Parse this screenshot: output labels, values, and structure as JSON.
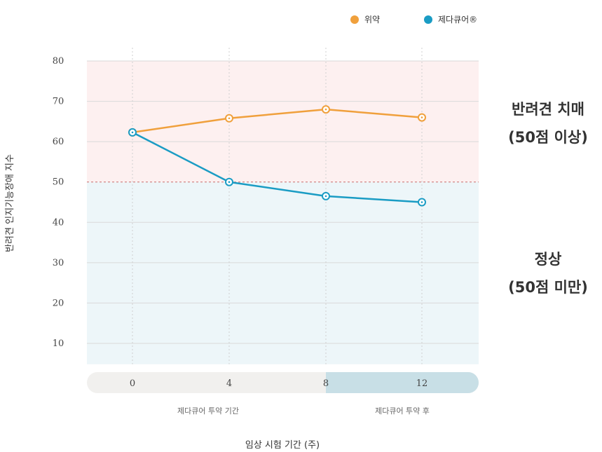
{
  "chart_data": {
    "type": "line",
    "x": [
      0,
      4,
      8,
      12
    ],
    "xlabel": "임상 시험 기간 (주)",
    "ylabel": "반려견 인지기능장애 지수",
    "ylim": [
      5,
      80
    ],
    "yticks": [
      10,
      20,
      30,
      40,
      50,
      60,
      70,
      80
    ],
    "threshold": 50,
    "series": [
      {
        "name": "위약",
        "color": "#f0a03c",
        "values": [
          62.3,
          65.8,
          68.0,
          66.0
        ]
      },
      {
        "name": "제다큐어®",
        "color": "#1a9cc4",
        "values": [
          62.3,
          50.0,
          46.5,
          45.0
        ]
      }
    ],
    "zones": {
      "upper": {
        "line1": "반려견 치매",
        "line2": "(50점 이상)",
        "color": "#fdf0f0"
      },
      "lower": {
        "line1": "정상",
        "line2": "(50점 미만)",
        "color": "#edf6f9"
      }
    },
    "periods": {
      "during": {
        "label": "제다큐어 투약 기간",
        "color": "#f1f0ee"
      },
      "after": {
        "label": "제다큐어 투약 후",
        "color": "#c8dfe6"
      }
    },
    "grid": true,
    "legend_position": "top-right"
  }
}
